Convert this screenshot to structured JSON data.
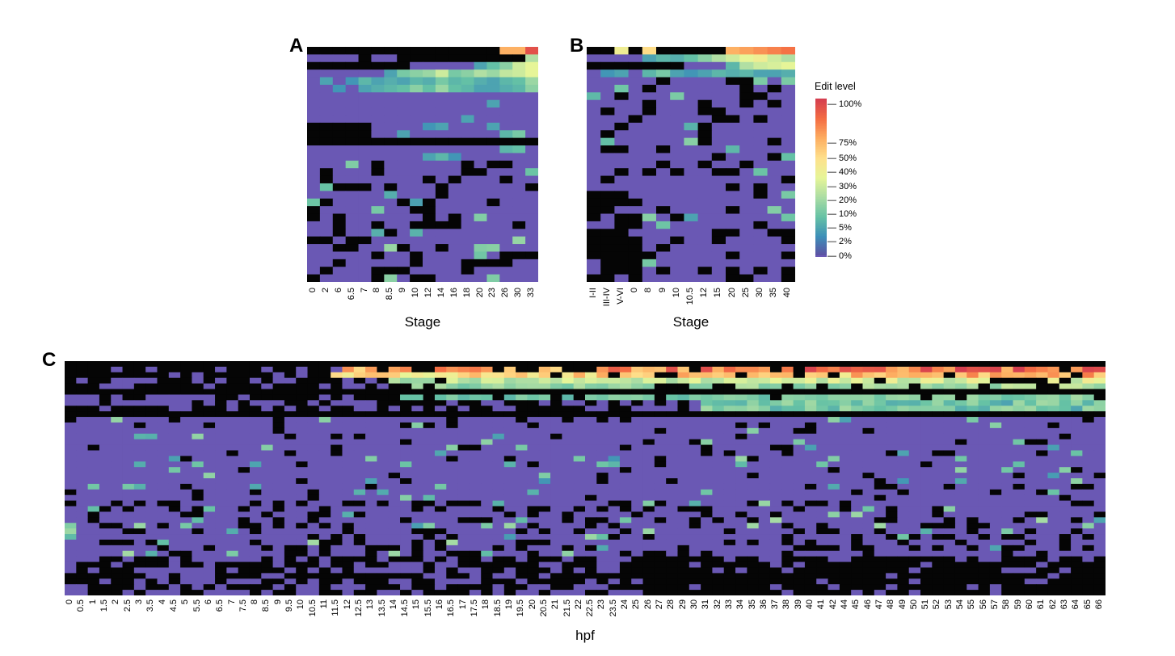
{
  "colors": {
    "missing": "#050505",
    "zero": "#6a58b4",
    "scale": [
      "#5e4fa2",
      "#3d8fb8",
      "#66c2a5",
      "#abdda4",
      "#e6f598",
      "#fee08b",
      "#fdae61",
      "#f46d43",
      "#d53e4f"
    ]
  },
  "panels": {
    "A": {
      "letter": "A",
      "x_title": "Stage",
      "rows": 31,
      "ticks": [
        "0",
        "2",
        "6",
        "6.5",
        "7",
        "8",
        "8.5",
        "9",
        "10",
        "12",
        "14",
        "16",
        "18",
        "20",
        "23",
        "26",
        "30",
        "33"
      ]
    },
    "B": {
      "letter": "B",
      "x_title": "Stage",
      "rows": 31,
      "ticks": [
        "I-II",
        "III-IV",
        "V-VI",
        "0",
        "8",
        "9",
        "10",
        "10.5",
        "12",
        "15",
        "20",
        "25",
        "30",
        "35",
        "40"
      ]
    },
    "C": {
      "letter": "C",
      "x_title": "hpf",
      "rows": 42,
      "ticks": [
        "0",
        "0.5",
        "1",
        "1.5",
        "2",
        "2.5",
        "3",
        "3.5",
        "4",
        "4.5",
        "5",
        "5.5",
        "6",
        "6.5",
        "7",
        "7.5",
        "8",
        "8.5",
        "9",
        "9.5",
        "10",
        "10.5",
        "11",
        "11.5",
        "12",
        "12.5",
        "13",
        "13.5",
        "14",
        "14.5",
        "15",
        "15.5",
        "16",
        "16.5",
        "17",
        "17.5",
        "18",
        "18.5",
        "19",
        "19.5",
        "20",
        "20.5",
        "21",
        "21.5",
        "22",
        "22.5",
        "23",
        "23.5",
        "24",
        "25",
        "26",
        "27",
        "28",
        "29",
        "30",
        "31",
        "32",
        "33",
        "34",
        "35",
        "36",
        "37",
        "38",
        "39",
        "40",
        "41",
        "42",
        "44",
        "45",
        "46",
        "47",
        "48",
        "49",
        "50",
        "51",
        "52",
        "53",
        "54",
        "55",
        "56",
        "57",
        "58",
        "59",
        "60",
        "61",
        "62",
        "63",
        "64",
        "65",
        "66"
      ]
    }
  },
  "legend": {
    "title": "Edit level",
    "labels": [
      "100%",
      "75%",
      "50%",
      "40%",
      "30%",
      "20%",
      "10%",
      "5%",
      "2%",
      "0%"
    ]
  },
  "chart_data": [
    {
      "type": "heatmap",
      "panel": "A",
      "xlabel": "Stage",
      "ylabel": "",
      "categories": [
        "0",
        "2",
        "6",
        "6.5",
        "7",
        "8",
        "8.5",
        "9",
        "10",
        "12",
        "14",
        "16",
        "18",
        "20",
        "23",
        "26",
        "30",
        "33"
      ],
      "value_label": "Edit level",
      "scale": [
        "0%",
        "2%",
        "5%",
        "10%",
        "20%",
        "30%",
        "40%",
        "50%",
        "75%",
        "100%"
      ],
      "row_edit_levels": [
        [
          null,
          null,
          null,
          null,
          null,
          null,
          null,
          null,
          null,
          null,
          null,
          null,
          null,
          null,
          null,
          0.55,
          0.55,
          0.9
        ],
        [
          0,
          0,
          0,
          0,
          null,
          0,
          0,
          null,
          null,
          null,
          null,
          null,
          null,
          null,
          null,
          null,
          null,
          0.15
        ],
        [
          null,
          null,
          null,
          null,
          null,
          null,
          null,
          null,
          0,
          0,
          0,
          0,
          0,
          0.03,
          0.06,
          0.1,
          0.2,
          0.25
        ],
        [
          0,
          0,
          0,
          0,
          0,
          0,
          0.03,
          0.08,
          0.1,
          0.12,
          0.2,
          0.08,
          0.1,
          0.15,
          0.12,
          0.18,
          0.2,
          0.25
        ],
        [
          0,
          0.03,
          0,
          0.02,
          0.05,
          0.03,
          0.04,
          0.03,
          0.05,
          0.04,
          0.08,
          0.05,
          0.06,
          0.04,
          0.03,
          0.05,
          0.06,
          0.12
        ],
        [
          0,
          0,
          0.02,
          0,
          0.03,
          0.04,
          0.05,
          0.06,
          0.1,
          0.06,
          0.12,
          0.06,
          0.05,
          0.03,
          0.03,
          0.04,
          0.05,
          0.1
        ],
        [
          0,
          0,
          0,
          0,
          0,
          0,
          0,
          0,
          0,
          0,
          0,
          0,
          0,
          0,
          0,
          0,
          0,
          0
        ],
        [
          0,
          0,
          0,
          0,
          0,
          0,
          0,
          0,
          0,
          0,
          0,
          0,
          0,
          0,
          0.03,
          0,
          0,
          0
        ],
        [
          0,
          0,
          0,
          0,
          0,
          0,
          0,
          0,
          0,
          0,
          0,
          0,
          0,
          0,
          0,
          0,
          0,
          0
        ],
        [
          0,
          0,
          0,
          0,
          0,
          0,
          0,
          0,
          0,
          0,
          0,
          0,
          0.03,
          0,
          0,
          0,
          0,
          0
        ],
        [
          null,
          null,
          null,
          null,
          null,
          0,
          0,
          0,
          0,
          0.02,
          0.03,
          0,
          0,
          0,
          0.03,
          0,
          0,
          0
        ],
        [
          null,
          null,
          null,
          null,
          null,
          0,
          0,
          0.03,
          0,
          0,
          0,
          0,
          0,
          0,
          0,
          0.05,
          0.08,
          0
        ],
        [
          null,
          null,
          null,
          null,
          null,
          null,
          null,
          null,
          null,
          null,
          null,
          null,
          null,
          null,
          null,
          null,
          null,
          null
        ],
        [
          0,
          0,
          0,
          0,
          0,
          0,
          0,
          0,
          0,
          0,
          0,
          0,
          0,
          0,
          0,
          0.05,
          0.06,
          0
        ],
        [
          0,
          0,
          0,
          0,
          0,
          0,
          0,
          0,
          0,
          0.03,
          0.05,
          0.02,
          0,
          0,
          0,
          0,
          0,
          0
        ]
      ]
    },
    {
      "type": "heatmap",
      "panel": "B",
      "xlabel": "Stage",
      "ylabel": "",
      "categories": [
        "I-II",
        "III-IV",
        "V-VI",
        "0",
        "8",
        "9",
        "10",
        "10.5",
        "12",
        "15",
        "20",
        "25",
        "30",
        "35",
        "40"
      ],
      "value_label": "Edit level",
      "scale": [
        "0%",
        "2%",
        "5%",
        "10%",
        "20%",
        "30%",
        "40%",
        "50%",
        "75%",
        "100%"
      ],
      "row_edit_levels": [
        [
          null,
          null,
          0.3,
          null,
          0.4,
          null,
          null,
          null,
          null,
          null,
          0.55,
          0.6,
          0.65,
          0.7,
          0.75
        ],
        [
          0,
          0,
          0,
          0,
          0.03,
          0.05,
          0.04,
          0.06,
          0.1,
          0.15,
          0.2,
          0.25,
          0.3,
          0.2,
          0.15
        ],
        [
          null,
          null,
          null,
          null,
          null,
          null,
          null,
          0,
          0,
          0,
          0.05,
          0.15,
          0.2,
          0.22,
          0.25
        ],
        [
          0,
          0.02,
          0.03,
          0,
          0.05,
          0.08,
          0.03,
          0.02,
          0.03,
          0.05,
          0.04,
          0.05,
          0.03,
          0.03,
          0.04
        ]
      ]
    },
    {
      "type": "heatmap",
      "panel": "C",
      "xlabel": "hpf",
      "ylabel": "",
      "categories": [
        "0",
        "0.5",
        "1",
        "1.5",
        "2",
        "2.5",
        "3",
        "3.5",
        "4",
        "4.5",
        "5",
        "5.5",
        "6",
        "6.5",
        "7",
        "7.5",
        "8",
        "8.5",
        "9",
        "9.5",
        "10",
        "10.5",
        "11",
        "11.5",
        "12",
        "12.5",
        "13",
        "13.5",
        "14",
        "14.5",
        "15",
        "15.5",
        "16",
        "16.5",
        "17",
        "17.5",
        "18",
        "18.5",
        "19",
        "19.5",
        "20",
        "20.5",
        "21",
        "21.5",
        "22",
        "22.5",
        "23",
        "23.5",
        "24",
        "25",
        "26",
        "27",
        "28",
        "29",
        "30",
        "31",
        "32",
        "33",
        "34",
        "35",
        "36",
        "37",
        "38",
        "39",
        "40",
        "41",
        "42",
        "44",
        "45",
        "46",
        "47",
        "48",
        "49",
        "50",
        "51",
        "52",
        "53",
        "54",
        "55",
        "56",
        "57",
        "58",
        "59",
        "60",
        "61",
        "62",
        "63",
        "64",
        "65",
        "66"
      ],
      "value_label": "Edit level",
      "scale": [
        "0%",
        "2%",
        "5%",
        "10%",
        "20%",
        "30%",
        "40%",
        "50%",
        "75%",
        "100%"
      ],
      "row_edit_levels_summary": [
        {
          "row": 1,
          "from_hpf": "12",
          "to_hpf": "66",
          "approx_level": 0.7
        },
        {
          "row": 2,
          "from_hpf": "11",
          "to_hpf": "66",
          "approx_level": 0.45
        },
        {
          "row": 3,
          "from_hpf": "14",
          "to_hpf": "66",
          "approx_level": 0.2
        },
        {
          "row": 4,
          "from_hpf": "15",
          "to_hpf": "66",
          "approx_level": 0.12
        },
        {
          "row": 6,
          "from_hpf": "14",
          "to_hpf": "66",
          "approx_level": 0.08
        }
      ]
    }
  ]
}
